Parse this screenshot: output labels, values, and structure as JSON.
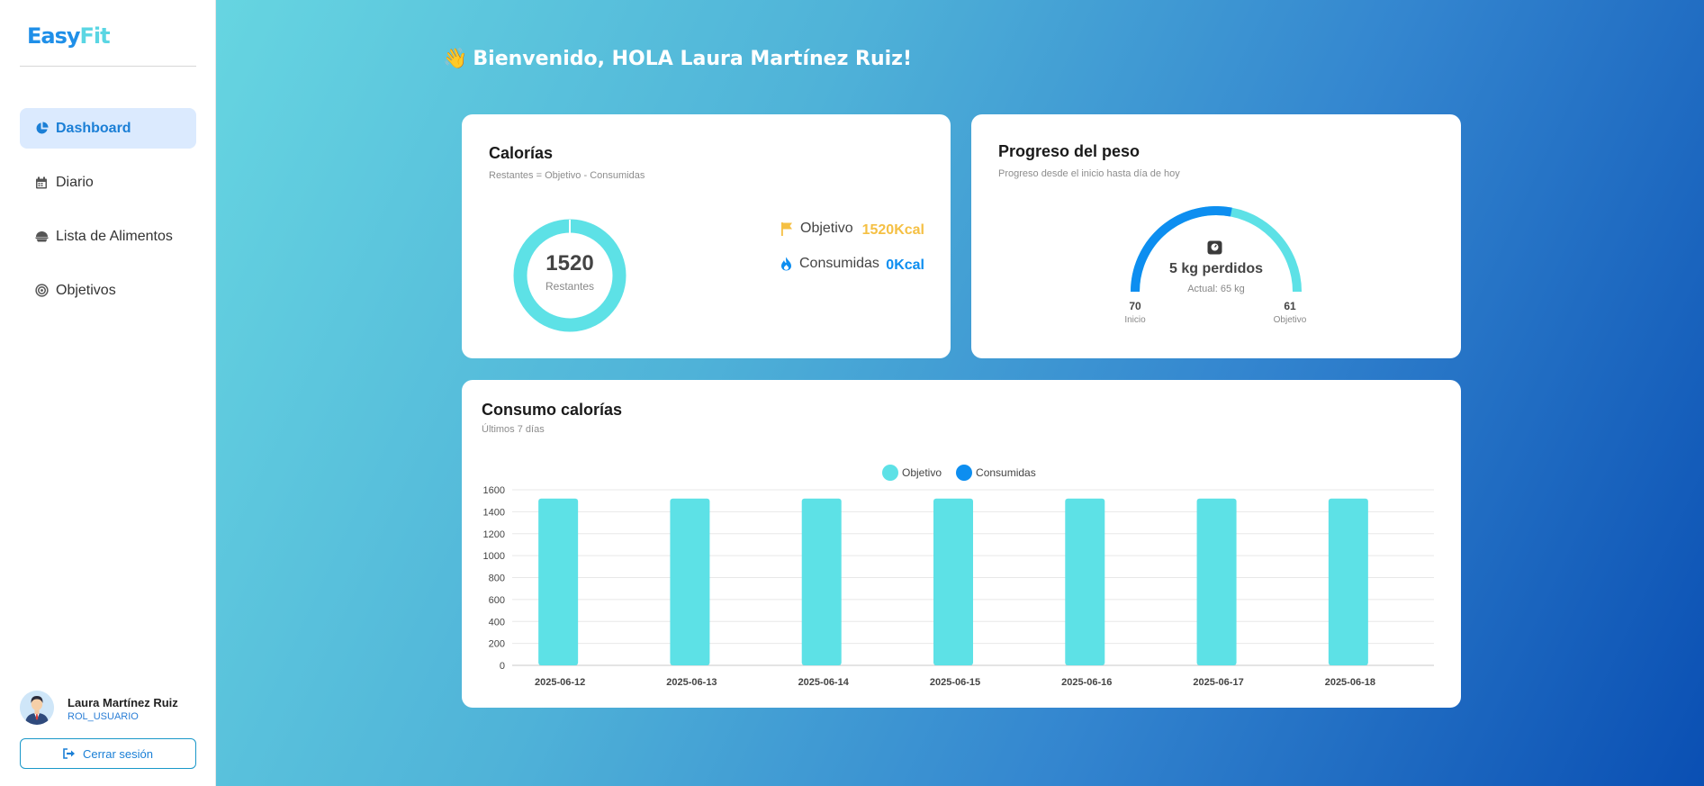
{
  "brand": {
    "part1": "Easy",
    "part2": "Fit"
  },
  "nav": [
    {
      "label": "Dashboard",
      "icon": "pie-chart-icon",
      "active": true
    },
    {
      "label": "Diario",
      "icon": "calendar-icon",
      "active": false
    },
    {
      "label": "Lista de Alimentos",
      "icon": "bowl-icon",
      "active": false
    },
    {
      "label": "Objetivos",
      "icon": "target-icon",
      "active": false
    }
  ],
  "user": {
    "name": "Laura Martínez Ruiz",
    "role": "ROL_USUARIO",
    "logout_label": "Cerrar sesión"
  },
  "welcome": {
    "emoji": "👋",
    "text": "Bienvenido, HOLA Laura Martínez Ruiz!"
  },
  "calories_card": {
    "title": "Calorías",
    "subtitle": "Restantes = Objetivo - Consumidas",
    "remaining_value": "1520",
    "remaining_label": "Restantes",
    "objective_label": "Objetivo",
    "objective_value": "1520Kcal",
    "consumed_label": "Consumidas",
    "consumed_value": "0Kcal"
  },
  "weight_card": {
    "title": "Progreso del peso",
    "subtitle": "Progreso desde el inicio hasta día de hoy",
    "main_text": "5 kg perdidos",
    "current_text": "Actual: 65 kg",
    "start_value": "70",
    "start_label": "Inicio",
    "goal_value": "61",
    "goal_label": "Objetivo",
    "progress_fraction": 0.56
  },
  "consumption_card": {
    "title": "Consumo calorías",
    "subtitle": "Últimos 7 días"
  },
  "colors": {
    "objective": "#5de1e6",
    "consumed": "#0d8ef0",
    "accent": "#1b7fd6",
    "objective_text": "#f5c044"
  },
  "chart_data": {
    "type": "bar",
    "categories": [
      "2025-06-12",
      "2025-06-13",
      "2025-06-14",
      "2025-06-15",
      "2025-06-16",
      "2025-06-17",
      "2025-06-18"
    ],
    "series": [
      {
        "name": "Objetivo",
        "values": [
          1520,
          1520,
          1520,
          1520,
          1520,
          1520,
          1520
        ]
      },
      {
        "name": "Consumidas",
        "values": [
          0,
          0,
          0,
          0,
          0,
          0,
          0
        ]
      }
    ],
    "ylim": [
      0,
      1600
    ],
    "yticks": [
      0,
      200,
      400,
      600,
      800,
      1000,
      1200,
      1400,
      1600
    ],
    "legend": "top-center",
    "grid": true
  }
}
